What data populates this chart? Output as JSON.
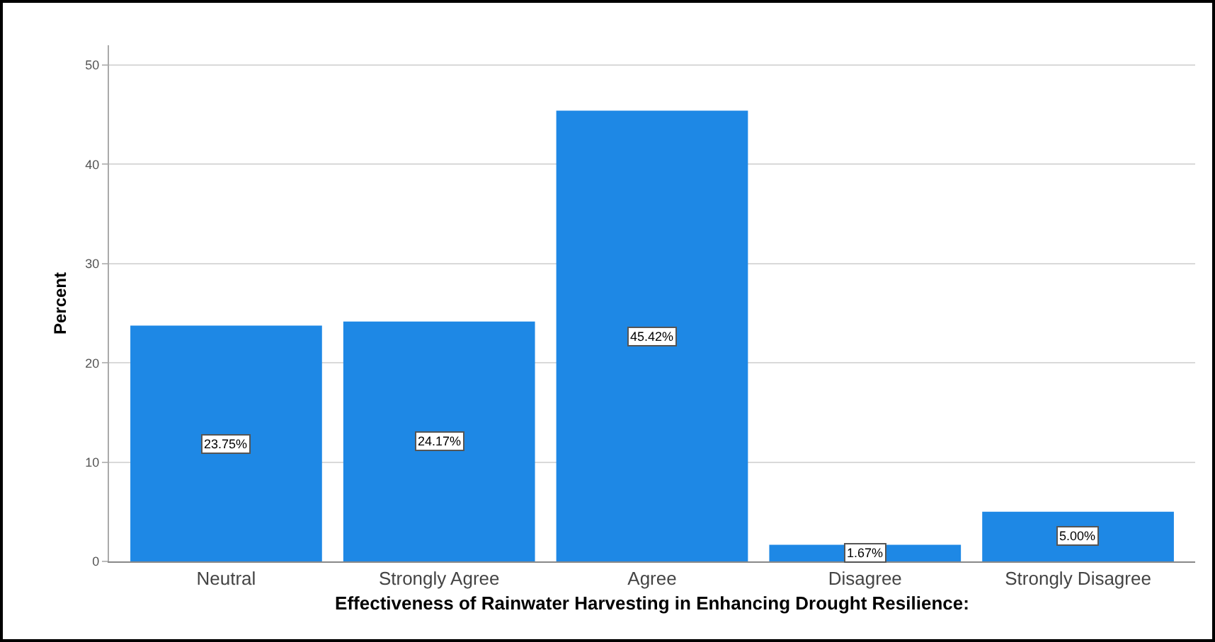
{
  "chart_data": {
    "type": "bar",
    "xlabel": "Effectiveness of Rainwater Harvesting in Enhancing Drought Resilience:",
    "ylabel": "Percent",
    "categories": [
      "Neutral",
      "Strongly Agree",
      "Agree",
      "Disagree",
      "Strongly Disagree"
    ],
    "values": [
      23.75,
      24.17,
      45.42,
      1.67,
      5.0
    ],
    "value_labels": [
      "23.75%",
      "24.17%",
      "45.42%",
      "1.67%",
      "5.00%"
    ],
    "color": "#1e88e5",
    "ylim": [
      0,
      52
    ],
    "yticks": [
      0,
      10,
      20,
      30,
      40,
      50
    ],
    "grid": "y"
  }
}
